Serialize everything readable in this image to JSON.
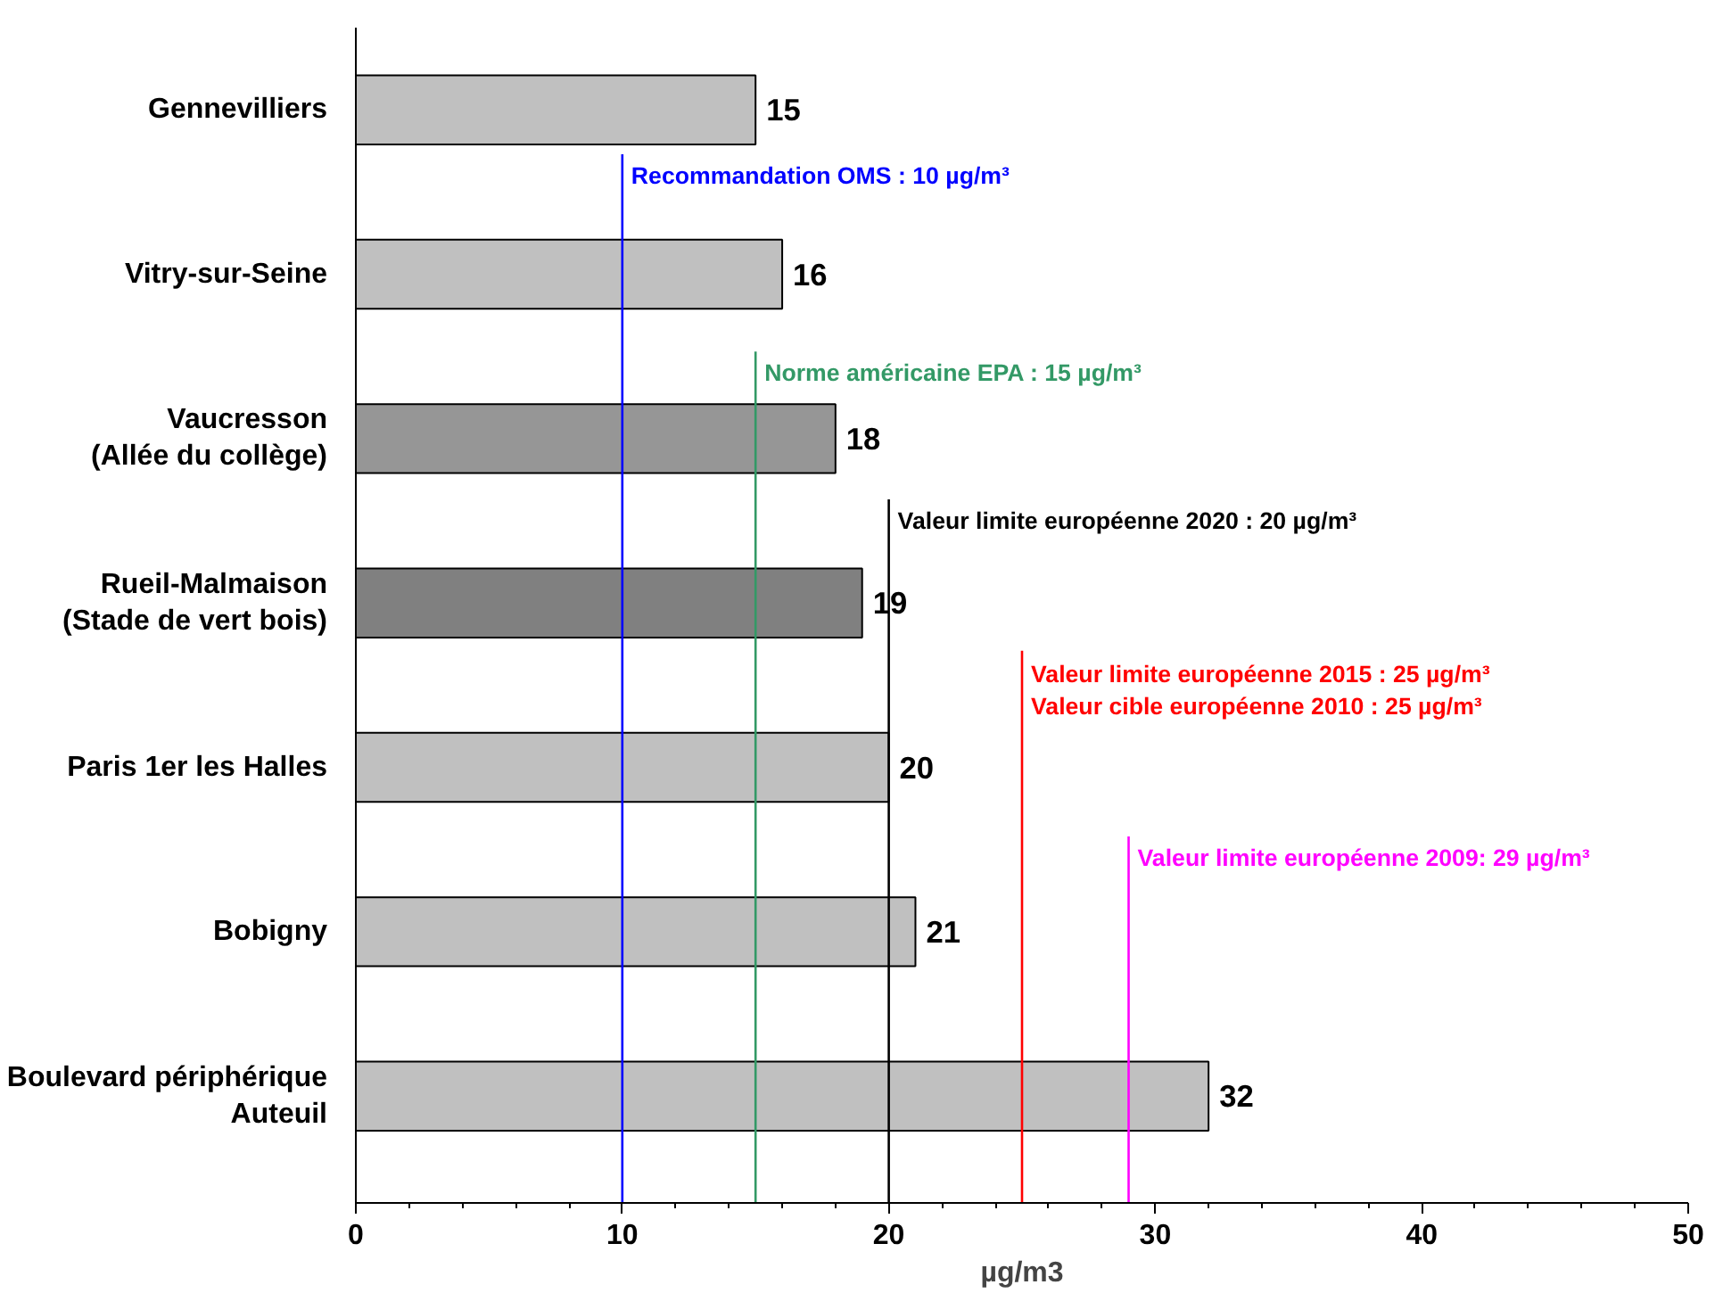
{
  "chart_data": {
    "type": "bar",
    "orientation": "horizontal",
    "categories": [
      "Gennevilliers",
      "Vitry-sur-Seine",
      "Vaucresson\n(Allée du collège)",
      "Rueil-Malmaison\n(Stade de vert bois)",
      "Paris 1er les Halles",
      "Bobigny",
      "Boulevard périphérique\nAuteuil"
    ],
    "values": [
      15,
      16,
      18,
      19,
      20,
      21,
      32
    ],
    "colors": [
      "#c0c0c0",
      "#c0c0c0",
      "#969696",
      "#808080",
      "#c0c0c0",
      "#c0c0c0",
      "#c0c0c0"
    ],
    "data_labels": true,
    "xlim": [
      0,
      50
    ],
    "xticks": [
      0,
      10,
      20,
      30,
      40,
      50
    ],
    "xlabel": "µg/m3",
    "grid": false,
    "ref_lines": [
      {
        "axis": "x",
        "value": 10,
        "label": "Recommandation OMS : 10 µg/m³",
        "color": "#0000ff"
      },
      {
        "axis": "x",
        "value": 15,
        "label": "Norme américaine EPA : 15 µg/m³",
        "color": "#339966"
      },
      {
        "axis": "x",
        "value": 20,
        "label": "Valeur limite européenne 2020 : 20 µg/m³",
        "color": "#000000"
      },
      {
        "axis": "x",
        "value": 25,
        "label": "Valeur limite européenne 2015 : 25 µg/m³\nValeur cible européenne 2010 : 25 µg/m³",
        "color": "#ff0000"
      },
      {
        "axis": "x",
        "value": 29,
        "label": "Valeur limite européenne 2009: 29 µg/m³",
        "color": "#ff00ff"
      }
    ]
  }
}
